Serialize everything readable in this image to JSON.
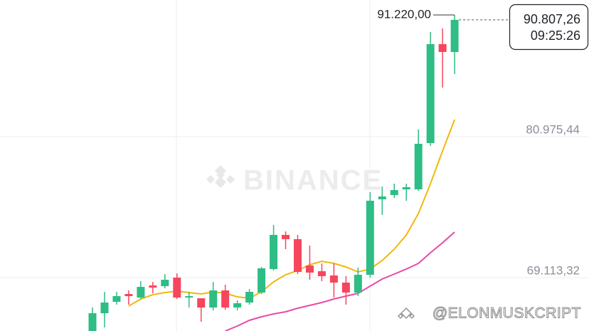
{
  "chart_data": {
    "type": "candlestick",
    "ylim": [
      64620,
      92478
    ],
    "yticks": [
      {
        "value": 69113.32,
        "label": "69.113,32"
      },
      {
        "value": 80975.44,
        "label": "80.975,44"
      }
    ],
    "grid": true,
    "up_color": "#2ebd85",
    "down_color": "#f6465d",
    "candles": [
      {
        "open": 64620,
        "high": 66596,
        "low": 64620,
        "close": 66116
      },
      {
        "open": 66116,
        "high": 67915,
        "low": 64918,
        "close": 67016
      },
      {
        "open": 67076,
        "high": 67915,
        "low": 66836,
        "close": 67555
      },
      {
        "open": 67735,
        "high": 68035,
        "low": 66836,
        "close": 67555
      },
      {
        "open": 67435,
        "high": 68814,
        "low": 67316,
        "close": 68334
      },
      {
        "open": 68454,
        "high": 68754,
        "low": 67795,
        "close": 68274
      },
      {
        "open": 68394,
        "high": 69413,
        "low": 68214,
        "close": 68934
      },
      {
        "open": 69113,
        "high": 69473,
        "low": 67316,
        "close": 67435
      },
      {
        "open": 67435,
        "high": 67915,
        "low": 66596,
        "close": 67555
      },
      {
        "open": 67375,
        "high": 67375,
        "low": 65397,
        "close": 66596
      },
      {
        "open": 66596,
        "high": 68754,
        "low": 66356,
        "close": 68035
      },
      {
        "open": 68035,
        "high": 68514,
        "low": 66416,
        "close": 66596
      },
      {
        "open": 66596,
        "high": 67196,
        "low": 66356,
        "close": 66956
      },
      {
        "open": 67016,
        "high": 68155,
        "low": 66836,
        "close": 67915
      },
      {
        "open": 67855,
        "high": 70012,
        "low": 67735,
        "close": 69893
      },
      {
        "open": 69833,
        "high": 73546,
        "low": 69713,
        "close": 72708
      },
      {
        "open": 72708,
        "high": 73007,
        "low": 71510,
        "close": 72348
      },
      {
        "open": 72348,
        "high": 72708,
        "low": 69413,
        "close": 69593
      },
      {
        "open": 70132,
        "high": 71809,
        "low": 68934,
        "close": 69533
      },
      {
        "open": 69653,
        "high": 70312,
        "low": 68814,
        "close": 69233
      },
      {
        "open": 69293,
        "high": 70312,
        "low": 67435,
        "close": 68694
      },
      {
        "open": 68694,
        "high": 69233,
        "low": 66836,
        "close": 67855
      },
      {
        "open": 67855,
        "high": 69952,
        "low": 67555,
        "close": 69353
      },
      {
        "open": 69353,
        "high": 76302,
        "low": 69113,
        "close": 75583
      },
      {
        "open": 75703,
        "high": 76782,
        "low": 74385,
        "close": 75942
      },
      {
        "open": 76062,
        "high": 77021,
        "low": 75823,
        "close": 76482
      },
      {
        "open": 76542,
        "high": 77021,
        "low": 75583,
        "close": 76722
      },
      {
        "open": 76542,
        "high": 81574,
        "low": 76422,
        "close": 80376
      },
      {
        "open": 80436,
        "high": 89782,
        "low": 80196,
        "close": 88764
      },
      {
        "open": 88764,
        "high": 90082,
        "low": 85110,
        "close": 88105
      },
      {
        "open": 88105,
        "high": 91220,
        "low": 86248,
        "close": 90807.26
      }
    ],
    "moving_averages": [
      {
        "color": "#f0b90b",
        "values": [
          null,
          null,
          null,
          66717,
          67316,
          67675,
          67855,
          67975,
          67855,
          67735,
          67915,
          67795,
          67495,
          67375,
          67915,
          68754,
          69353,
          69713,
          70192,
          70492,
          70312,
          70012,
          69593,
          69833,
          70552,
          71510,
          72708,
          74505,
          77021,
          79777,
          82413
        ]
      },
      {
        "color": "#e84aa8",
        "values": [
          null,
          null,
          null,
          null,
          null,
          null,
          null,
          null,
          null,
          null,
          null,
          64620,
          65040,
          65519,
          65819,
          66058,
          66238,
          66537,
          66777,
          67017,
          67316,
          67556,
          67795,
          68394,
          68993,
          69413,
          69833,
          70312,
          71210,
          72049,
          72948
        ]
      }
    ],
    "high_marker": {
      "value": 91220,
      "label": "91.220,00"
    },
    "last_price": {
      "value": 90807.26,
      "label": "90.807,26"
    },
    "countdown": "09:25:26",
    "watermark": "BINANCE",
    "credit": "@ELONMUSKCRIPT"
  }
}
